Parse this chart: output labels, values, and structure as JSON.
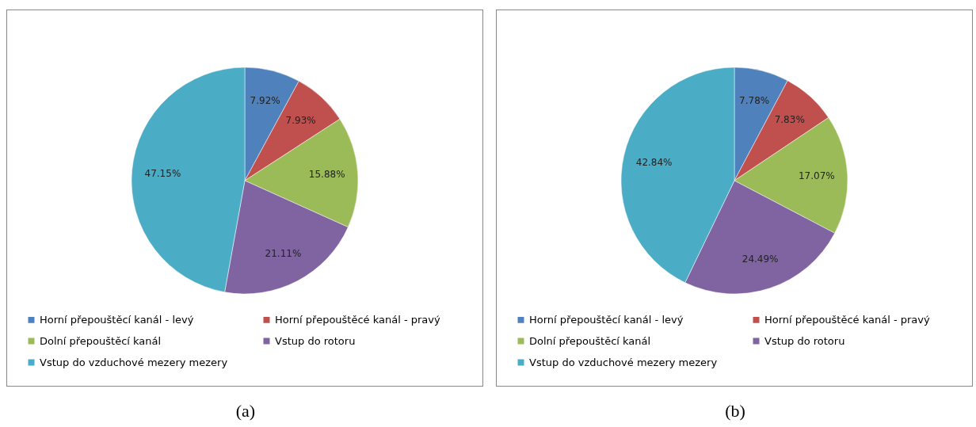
{
  "chart_data": [
    {
      "type": "pie",
      "title": "(a)",
      "categories": [
        "Horní přepouštěcí kanál - levý",
        "Horní přepouštěcé kanál - pravý",
        "Dolní přepouštěcí kanál",
        "Vstup do rotoru",
        "Vstup do vzduchové mezery mezery"
      ],
      "values": [
        7.92,
        7.93,
        15.88,
        21.11,
        47.15
      ],
      "value_labels": [
        "7.92%",
        "7.93%",
        "15.88%",
        "21.11%",
        "47.15%"
      ],
      "colors": [
        "#4f81bd",
        "#c0504d",
        "#9bbb59",
        "#8064a2",
        "#4bacc6"
      ],
      "legend": "bottom"
    },
    {
      "type": "pie",
      "title": "(b)",
      "categories": [
        "Horní přepouštěcí kanál - levý",
        "Horní přepouštěcé kanál - pravý",
        "Dolní přepouštěcí kanál",
        "Vstup do rotoru",
        "Vstup do vzduchové mezery mezery"
      ],
      "values": [
        7.78,
        7.83,
        17.07,
        24.49,
        42.84
      ],
      "value_labels": [
        "7.78%",
        "7.83%",
        "17.07%",
        "24.49%",
        "42.84%"
      ],
      "colors": [
        "#4f81bd",
        "#c0504d",
        "#9bbb59",
        "#8064a2",
        "#4bacc6"
      ],
      "legend": "bottom"
    }
  ]
}
